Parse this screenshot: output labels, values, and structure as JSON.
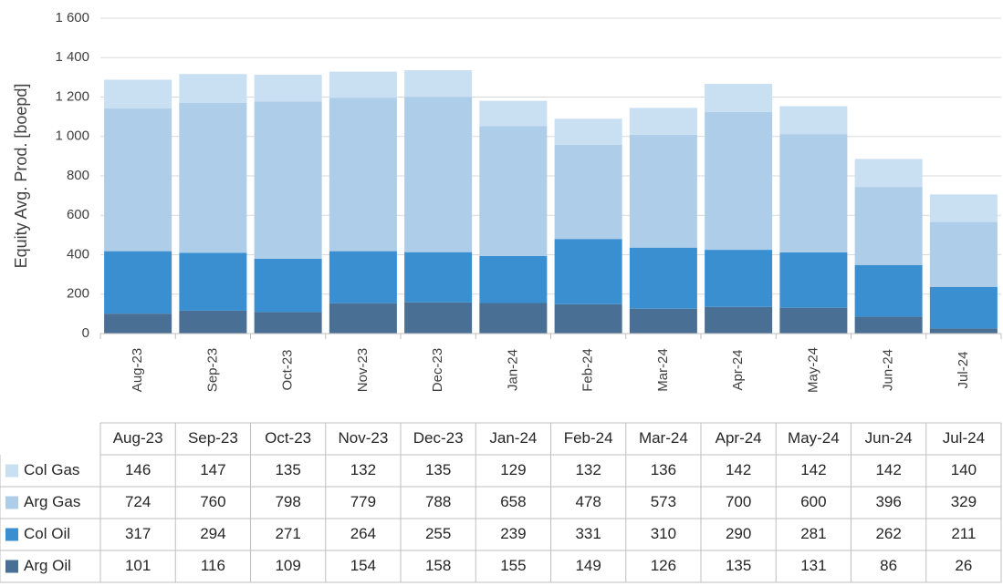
{
  "chart_data": {
    "type": "bar",
    "stacked": true,
    "y_label": "Equity Avg. Prod. [boepd]",
    "categories": [
      "Aug-23",
      "Sep-23",
      "Oct-23",
      "Nov-23",
      "Dec-23",
      "Jan-24",
      "Feb-24",
      "Mar-24",
      "Apr-24",
      "May-24",
      "Jun-24",
      "Jul-24"
    ],
    "series": [
      {
        "name": "Arg Oil",
        "color": "#4a6f94",
        "values": [
          101,
          116,
          109,
          154,
          158,
          155,
          149,
          126,
          135,
          131,
          86,
          26
        ]
      },
      {
        "name": "Col Oil",
        "color": "#3a8fd1",
        "values": [
          317,
          294,
          271,
          264,
          255,
          239,
          331,
          310,
          290,
          281,
          262,
          211
        ]
      },
      {
        "name": "Arg Gas",
        "color": "#aecde9",
        "values": [
          724,
          760,
          798,
          779,
          788,
          658,
          478,
          573,
          700,
          600,
          396,
          329
        ]
      },
      {
        "name": "Col Gas",
        "color": "#c9dff2",
        "values": [
          146,
          147,
          135,
          132,
          135,
          129,
          132,
          136,
          142,
          142,
          142,
          140
        ]
      }
    ],
    "ylim": [
      0,
      1600
    ],
    "yticks": [
      0,
      200,
      400,
      600,
      800,
      {
        "value": 1000,
        "label": "1 000"
      },
      {
        "value": 1200,
        "label": "1 200"
      },
      {
        "value": 1400,
        "label": "1 400"
      },
      {
        "value": 1600,
        "label": "1 600"
      }
    ],
    "grid": true,
    "data_table": true
  }
}
